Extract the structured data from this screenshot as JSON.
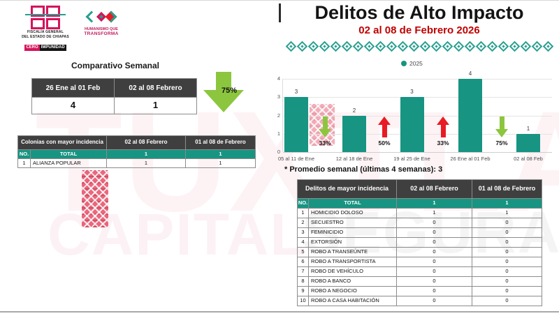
{
  "header": {
    "logo_fge": {
      "line1": "FISCALÍA GENERAL",
      "line2": "DEL ESTADO DE CHIAPAS",
      "badge1": "CERO",
      "badge2": "IMPUNIDAD"
    },
    "logo_humanismo": {
      "line1": "HUMANISMO QUE",
      "line2": "TRANSFORMA"
    },
    "title": "Delitos de Alto Impacto",
    "subtitle": "02 al 08 de Febrero 2026"
  },
  "comparativo": {
    "heading": "Comparativo Semanal",
    "col1": "26 Ene al 01 Feb",
    "col2": "02 al 08 Febrero",
    "val1": "4",
    "val2": "1",
    "change_pct": "75%",
    "change_dir": "down"
  },
  "colonias": {
    "headers": [
      "Colonias con mayor incidencia",
      "02 al 08 Febrero",
      "01 al 08 de Febrero"
    ],
    "total_row": {
      "no": "NO.",
      "label": "TOTAL",
      "v1": "1",
      "v2": "1"
    },
    "rows": [
      {
        "no": "1",
        "name": "ALIANZA POPULAR",
        "v1": "1",
        "v2": "1"
      }
    ]
  },
  "chart_data": {
    "type": "bar",
    "title": "",
    "legend": [
      "2025"
    ],
    "legend_position": "top",
    "categories": [
      "05 al 11 de Ene",
      "12 al 18 de Ene",
      "19 al 25 de Ene",
      "26 Ene al 01 Feb",
      "02 al 08 Feb"
    ],
    "values": [
      3,
      2,
      3,
      4,
      1
    ],
    "xlabel": "",
    "ylabel": "",
    "ylim": [
      0,
      4
    ],
    "yticks": [
      0,
      1,
      2,
      3,
      4
    ],
    "grid": true,
    "bar_color": "#189482",
    "changes": [
      {
        "between": [
          "05 al 11 de Ene",
          "12 al 18 de Ene"
        ],
        "dir": "down",
        "pct": "33%"
      },
      {
        "between": [
          "12 al 18 de Ene",
          "19 al 25 de Ene"
        ],
        "dir": "up",
        "pct": "50%"
      },
      {
        "between": [
          "19 al 25 de Ene",
          "26 Ene al 01 Feb"
        ],
        "dir": "up",
        "pct": "33%"
      },
      {
        "between": [
          "26 Ene al 01 Feb",
          "02 al 08 Feb"
        ],
        "dir": "down",
        "pct": "75%"
      }
    ]
  },
  "promedio_note": "* Promedio semanal (últimas 4 semanas): 3",
  "delitos": {
    "headers": [
      "Delitos de mayor incidencia",
      "02 al 08 Febrero",
      "01 al 08 de Febrero"
    ],
    "total_row": {
      "no": "NO.",
      "label": "TOTAL",
      "v1": "1",
      "v2": "1"
    },
    "rows": [
      {
        "no": "1",
        "name": "HOMICIDIO DOLOSO",
        "v1": "1",
        "v2": "1"
      },
      {
        "no": "2",
        "name": "SECUESTRO",
        "v1": "0",
        "v2": "0"
      },
      {
        "no": "3",
        "name": "FEMINICIDIO",
        "v1": "0",
        "v2": "0"
      },
      {
        "no": "4",
        "name": "EXTORSIÓN",
        "v1": "0",
        "v2": "0"
      },
      {
        "no": "5",
        "name": "ROBO A TRANSEÚNTE",
        "v1": "0",
        "v2": "0"
      },
      {
        "no": "6",
        "name": "ROBO A TRANSPORTISTA",
        "v1": "0",
        "v2": "0"
      },
      {
        "no": "7",
        "name": "ROBO DE VEHÍCULO",
        "v1": "0",
        "v2": "0"
      },
      {
        "no": "8",
        "name": "ROBO A BANCO",
        "v1": "0",
        "v2": "0"
      },
      {
        "no": "9",
        "name": "ROBO A NEGOCIO",
        "v1": "0",
        "v2": "0"
      },
      {
        "no": "10",
        "name": "ROBO A CASA HABITACIÓN",
        "v1": "0",
        "v2": "0"
      }
    ]
  },
  "watermark": {
    "word1": "TUXTLA",
    "word2": "CAPITAL",
    "word3": "SEGURA"
  },
  "colors": {
    "teal": "#189482",
    "header_dark": "#3f3f3f",
    "title_red": "#c00000",
    "arrow_green": "#8cc63e",
    "arrow_red": "#e81c24",
    "logo_pink": "#d4145a"
  }
}
